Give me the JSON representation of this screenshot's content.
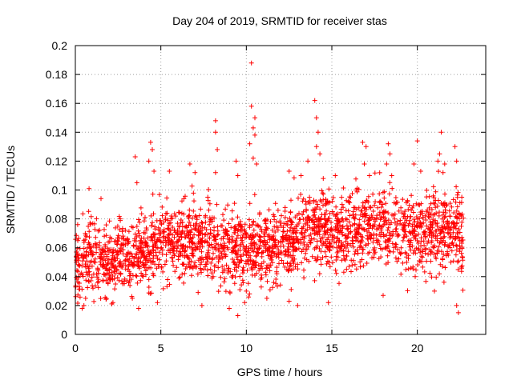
{
  "chart_data": {
    "type": "scatter",
    "title": "Day 204 of 2019, SRMTID for receiver stas",
    "xlabel": "GPS time / hours",
    "ylabel": "SRMTID / TECUs",
    "xlim": [
      0,
      24
    ],
    "ylim": [
      0,
      0.2
    ],
    "xticks": [
      0,
      5,
      10,
      15,
      20
    ],
    "xtick_labels": [
      "0",
      "5",
      "10",
      "15",
      "20"
    ],
    "yticks": [
      0,
      0.02,
      0.04,
      0.06,
      0.08,
      0.1,
      0.12,
      0.14,
      0.16,
      0.18,
      0.2
    ],
    "ytick_labels": [
      "0",
      "0.02",
      "0.04",
      "0.06",
      "0.08",
      "0.1",
      "0.12",
      "0.14",
      "0.16",
      "0.18",
      "0.2"
    ],
    "grid": true,
    "marker": "+",
    "color": "#ff0000",
    "trend": [
      [
        0,
        0.05
      ],
      [
        1,
        0.052
      ],
      [
        2,
        0.05
      ],
      [
        3,
        0.052
      ],
      [
        4,
        0.058
      ],
      [
        5,
        0.062
      ],
      [
        6,
        0.064
      ],
      [
        7,
        0.063
      ],
      [
        8,
        0.06
      ],
      [
        9,
        0.058
      ],
      [
        10,
        0.062
      ],
      [
        11,
        0.058
      ],
      [
        12,
        0.06
      ],
      [
        13,
        0.066
      ],
      [
        14,
        0.078
      ],
      [
        15,
        0.07
      ],
      [
        16,
        0.068
      ],
      [
        17,
        0.075
      ],
      [
        18,
        0.072
      ],
      [
        19,
        0.07
      ],
      [
        20,
        0.068
      ],
      [
        21,
        0.07
      ],
      [
        22,
        0.072
      ],
      [
        22.7,
        0.068
      ]
    ],
    "noise_base": 0.012,
    "n_points": 2400,
    "seed": 20190723,
    "peaks": [
      {
        "x": 8.2,
        "y": 0.148
      },
      {
        "x": 8.2,
        "y": 0.14
      },
      {
        "x": 8.3,
        "y": 0.128
      },
      {
        "x": 8.2,
        "y": 0.112
      },
      {
        "x": 10.3,
        "y": 0.188
      },
      {
        "x": 10.3,
        "y": 0.158
      },
      {
        "x": 10.5,
        "y": 0.15
      },
      {
        "x": 10.4,
        "y": 0.143
      },
      {
        "x": 10.5,
        "y": 0.138
      },
      {
        "x": 10.2,
        "y": 0.132
      },
      {
        "x": 10.4,
        "y": 0.122
      },
      {
        "x": 10.6,
        "y": 0.118
      },
      {
        "x": 14.0,
        "y": 0.162
      },
      {
        "x": 14.1,
        "y": 0.15
      },
      {
        "x": 14.2,
        "y": 0.14
      },
      {
        "x": 14.1,
        "y": 0.13
      },
      {
        "x": 14.3,
        "y": 0.125
      },
      {
        "x": 14.5,
        "y": 0.108
      },
      {
        "x": 4.4,
        "y": 0.133
      },
      {
        "x": 4.5,
        "y": 0.128
      },
      {
        "x": 4.3,
        "y": 0.12
      },
      {
        "x": 4.6,
        "y": 0.113
      },
      {
        "x": 3.5,
        "y": 0.123
      },
      {
        "x": 3.6,
        "y": 0.105
      },
      {
        "x": 5.5,
        "y": 0.113
      },
      {
        "x": 6.7,
        "y": 0.118
      },
      {
        "x": 7.0,
        "y": 0.112
      },
      {
        "x": 9.4,
        "y": 0.12
      },
      {
        "x": 9.5,
        "y": 0.11
      },
      {
        "x": 12.5,
        "y": 0.113
      },
      {
        "x": 13.2,
        "y": 0.11
      },
      {
        "x": 13.6,
        "y": 0.12
      },
      {
        "x": 15.2,
        "y": 0.11
      },
      {
        "x": 16.8,
        "y": 0.133
      },
      {
        "x": 17.0,
        "y": 0.13
      },
      {
        "x": 16.9,
        "y": 0.118
      },
      {
        "x": 17.2,
        "y": 0.11
      },
      {
        "x": 18.3,
        "y": 0.132
      },
      {
        "x": 18.4,
        "y": 0.125
      },
      {
        "x": 18.2,
        "y": 0.118
      },
      {
        "x": 18.5,
        "y": 0.11
      },
      {
        "x": 19.8,
        "y": 0.118
      },
      {
        "x": 20.0,
        "y": 0.134
      },
      {
        "x": 20.2,
        "y": 0.113
      },
      {
        "x": 21.4,
        "y": 0.14
      },
      {
        "x": 21.3,
        "y": 0.125
      },
      {
        "x": 21.2,
        "y": 0.12
      },
      {
        "x": 21.5,
        "y": 0.112
      },
      {
        "x": 21.6,
        "y": 0.118
      },
      {
        "x": 22.2,
        "y": 0.13
      },
      {
        "x": 22.3,
        "y": 0.12
      },
      {
        "x": 22.6,
        "y": 0.095
      },
      {
        "x": 1.5,
        "y": 0.094
      },
      {
        "x": 0.8,
        "y": 0.101
      }
    ],
    "lows": [
      {
        "x": 0.4,
        "y": 0.018
      },
      {
        "x": 0.5,
        "y": 0.02
      },
      {
        "x": 0.6,
        "y": 0.025
      },
      {
        "x": 2.2,
        "y": 0.022
      },
      {
        "x": 3.7,
        "y": 0.018
      },
      {
        "x": 4.8,
        "y": 0.022
      },
      {
        "x": 7.4,
        "y": 0.02
      },
      {
        "x": 9.0,
        "y": 0.018
      },
      {
        "x": 9.5,
        "y": 0.013
      },
      {
        "x": 9.9,
        "y": 0.022
      },
      {
        "x": 10.0,
        "y": 0.03
      },
      {
        "x": 11.2,
        "y": 0.025
      },
      {
        "x": 12.5,
        "y": 0.023
      },
      {
        "x": 13.0,
        "y": 0.02
      },
      {
        "x": 14.8,
        "y": 0.022
      },
      {
        "x": 18.0,
        "y": 0.027
      },
      {
        "x": 22.3,
        "y": 0.02
      },
      {
        "x": 22.4,
        "y": 0.015
      },
      {
        "x": 21.0,
        "y": 0.03
      }
    ]
  }
}
